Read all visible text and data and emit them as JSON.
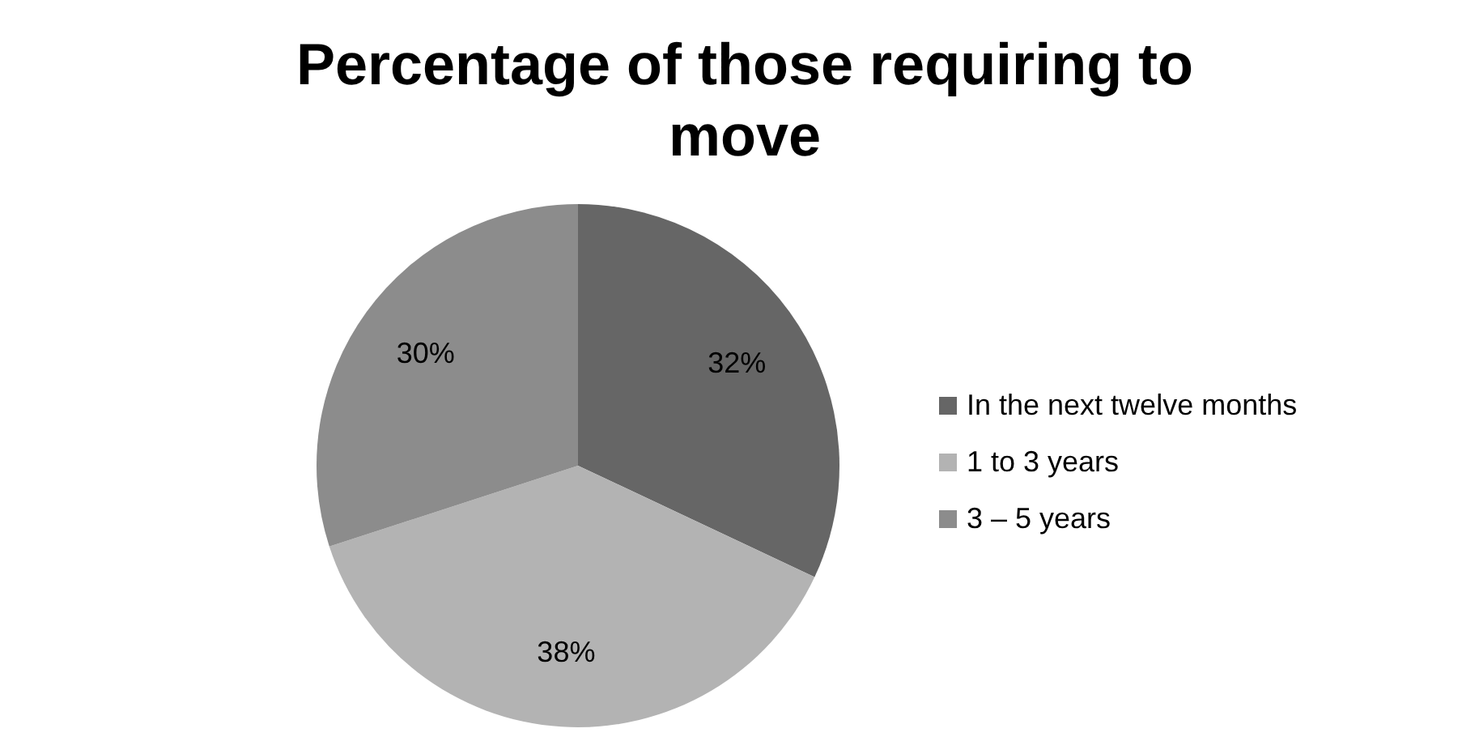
{
  "chart_data": {
    "type": "pie",
    "title": "Percentage of those requiring to move",
    "categories": [
      "In the next twelve months",
      "1 to 3 years",
      "3 – 5 years"
    ],
    "values": [
      32,
      38,
      30
    ],
    "colors": [
      "#666666",
      "#b3b3b3",
      "#8c8c8c"
    ],
    "value_labels": [
      "32%",
      "38%",
      "30%"
    ],
    "legend": "right"
  }
}
